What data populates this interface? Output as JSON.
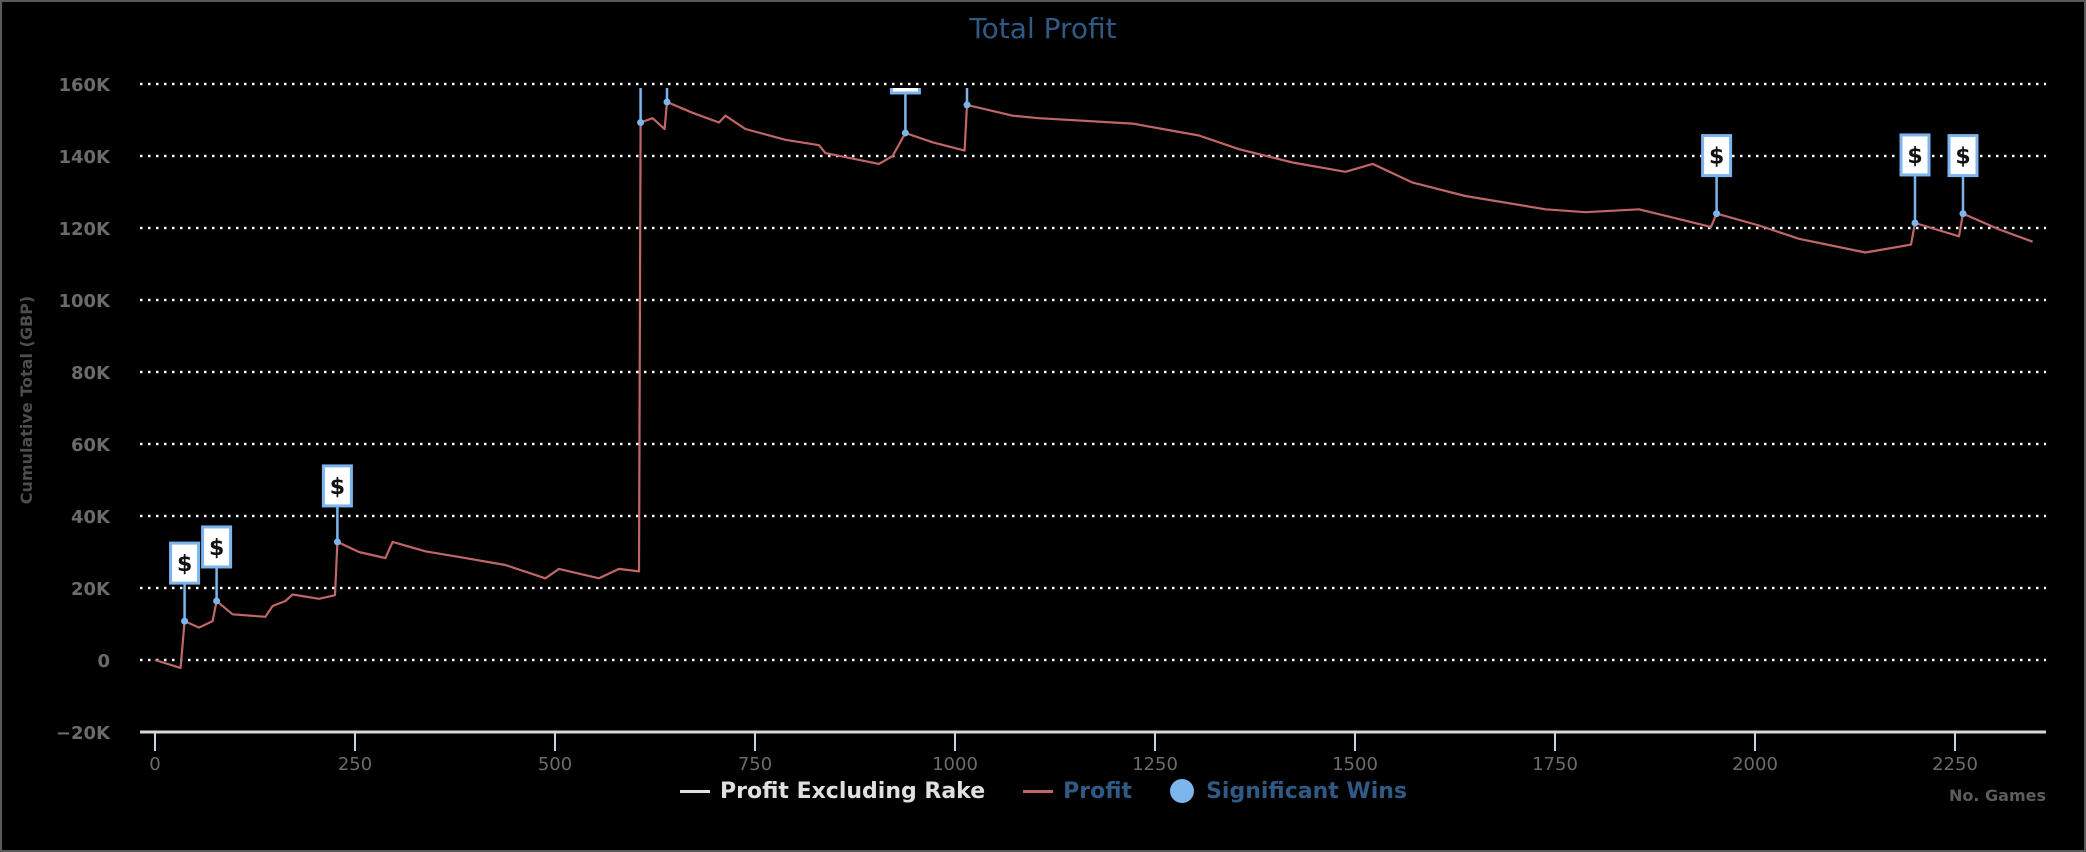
{
  "chart": {
    "title": "Total Profit",
    "y_axis_title": "Cumulative Total (GBP)",
    "x_axis_title": "No. Games",
    "y_ticks": [
      "160K",
      "140K",
      "120K",
      "100K",
      "80K",
      "60K",
      "40K",
      "20K",
      "0",
      "−20K"
    ],
    "x_ticks": [
      "0",
      "250",
      "500",
      "750",
      "1000",
      "1250",
      "1500",
      "1750",
      "2000",
      "2250"
    ],
    "flag_symbol": "$"
  },
  "legend": {
    "items": [
      {
        "label": "Profit Excluding Rake",
        "color": "#e0e0e0"
      },
      {
        "label": "Profit",
        "color": "#c06666"
      },
      {
        "label": "Significant Wins",
        "color": "#7cb5ec"
      }
    ]
  },
  "colors": {
    "profit_line": "#c06666",
    "flag_border": "#7cb5ec",
    "title": "#2f5a86",
    "legend_inactive_text": "#2f5a86",
    "gridline": "#ffffff"
  },
  "chart_data": {
    "type": "line",
    "title": "Total Profit",
    "xlabel": "No. Games",
    "ylabel": "Cumulative Total (GBP)",
    "xlim": [
      -20,
      2370
    ],
    "ylim": [
      -20000,
      160000
    ],
    "grid": true,
    "legend_position": "bottom",
    "series": [
      {
        "name": "Profit",
        "x": [
          0,
          32,
          37,
          55,
          72,
          77,
          97,
          138,
          147,
          163,
          172,
          205,
          225,
          228,
          255,
          288,
          297,
          338,
          388,
          438,
          488,
          505,
          555,
          580,
          605,
          607,
          622,
          637,
          640,
          672,
          705,
          713,
          738,
          788,
          830,
          838,
          905,
          922,
          938,
          972,
          1012,
          1015,
          1072,
          1105,
          1222,
          1305,
          1355,
          1422,
          1488,
          1522,
          1572,
          1638,
          1738,
          1788,
          1855,
          1945,
          1952,
          2005,
          2055,
          2138,
          2195,
          2200,
          2255,
          2260,
          2305,
          2347
        ],
        "values": [
          0,
          -2200,
          10800,
          9000,
          10800,
          16400,
          12700,
          12000,
          15000,
          16400,
          18200,
          17000,
          18000,
          32800,
          30000,
          28300,
          32800,
          30200,
          28300,
          26400,
          22700,
          25300,
          22700,
          25300,
          24600,
          149300,
          150500,
          147500,
          155000,
          152000,
          149300,
          151200,
          147500,
          144500,
          143000,
          140800,
          137800,
          140000,
          146400,
          143800,
          141500,
          154200,
          151200,
          150500,
          149000,
          145700,
          141900,
          138200,
          135600,
          137800,
          132600,
          128900,
          125200,
          124400,
          125200,
          120300,
          124000,
          120700,
          117000,
          113200,
          115400,
          121400,
          117700,
          124000,
          119600,
          116200
        ]
      },
      {
        "name": "Profit Excluding Rake",
        "x": [],
        "values": [],
        "hidden": true
      },
      {
        "name": "Significant Wins",
        "type": "flags",
        "x": [
          37,
          77,
          228,
          607,
          640,
          938,
          1015,
          1952,
          2200,
          2260
        ],
        "values": [
          10800,
          16400,
          32800,
          149300,
          155000,
          146400,
          154200,
          124000,
          121400,
          124000
        ],
        "label": "$"
      }
    ]
  }
}
